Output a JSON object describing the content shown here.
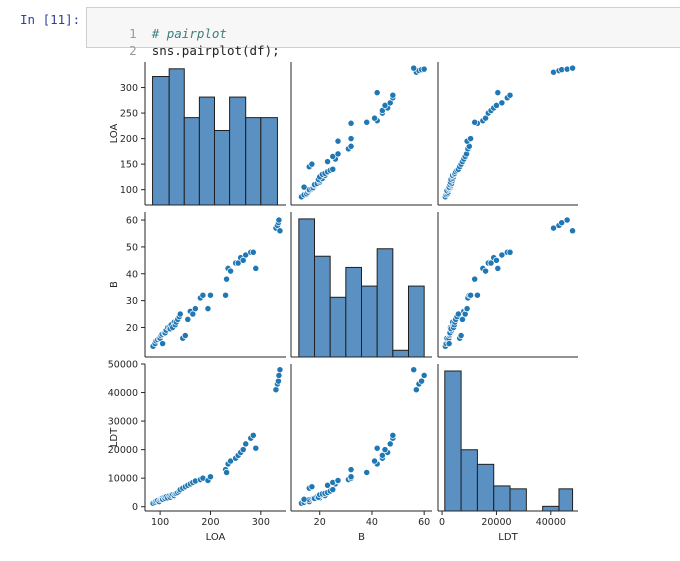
{
  "cell": {
    "prompt": "In [11]:",
    "lines": [
      {
        "num": "1",
        "text": "# pairplot",
        "kind": "comment"
      },
      {
        "num": "2",
        "text": "sns.pairplot(df);",
        "kind": "code"
      }
    ]
  },
  "chart_data": {
    "type": "pairplot",
    "variables": [
      "LOA",
      "B",
      "LDT"
    ],
    "colors": {
      "bar": "#5a91c2",
      "bar_edge": "#1f1f1f",
      "point": "#1f77b4",
      "point_edge": "#ffffff"
    },
    "ranges": {
      "LOA": [
        70,
        350
      ],
      "B": [
        9,
        63
      ],
      "LDT": [
        -1500,
        50000
      ]
    },
    "ticks": {
      "LOA": {
        "row": [
          100,
          150,
          200,
          250,
          300
        ],
        "col": [
          100,
          200,
          300
        ]
      },
      "B": {
        "row": [
          20,
          30,
          40,
          50,
          60
        ],
        "col": [
          20,
          40,
          60
        ]
      },
      "LDT": {
        "row": [
          0,
          10000,
          20000,
          30000,
          40000,
          50000
        ],
        "col": [
          0,
          20000,
          40000
        ]
      }
    },
    "histograms": {
      "LOA": {
        "edges": [
          85,
          118,
          148,
          178,
          208,
          238,
          270,
          300,
          333
        ],
        "counts": [
          5,
          5.3,
          3.4,
          4.2,
          2.9,
          4.2,
          3.4,
          3.4
        ]
      },
      "B": {
        "edges": [
          12,
          18,
          24,
          30,
          36,
          42,
          48,
          54,
          60
        ],
        "counts": [
          37,
          27,
          16,
          24,
          19,
          29,
          1.8,
          19
        ]
      },
      "LDT": {
        "edges": [
          1000,
          7000,
          13000,
          19000,
          25000,
          31000,
          37000,
          43000,
          48000
        ],
        "counts": [
          24,
          10.5,
          8,
          4.3,
          3.8,
          0,
          0.8,
          3.8
        ]
      }
    },
    "points": {
      "LOA": [
        86,
        90,
        92,
        95,
        98,
        100,
        102,
        104,
        105,
        108,
        110,
        112,
        115,
        118,
        120,
        122,
        125,
        128,
        130,
        132,
        135,
        138,
        140,
        145,
        150,
        155,
        160,
        165,
        170,
        180,
        185,
        195,
        200,
        230,
        232,
        235,
        240,
        250,
        255,
        260,
        265,
        270,
        280,
        285,
        290,
        330,
        333,
        335,
        336,
        338
      ],
      "B": [
        13,
        14,
        15,
        15.5,
        16,
        16,
        17,
        17.5,
        14,
        18,
        18,
        19,
        20,
        20,
        19.5,
        21,
        20,
        22,
        21,
        22,
        23,
        24,
        25,
        16,
        17,
        23,
        26,
        25,
        27,
        31,
        32,
        27,
        32,
        32,
        38,
        42,
        41,
        44,
        44,
        46,
        45,
        47,
        48,
        48,
        42,
        57,
        58,
        59,
        60,
        56
      ],
      "LDT": [
        1200,
        1500,
        2000,
        2200,
        1800,
        2500,
        2800,
        3000,
        2600,
        3200,
        2900,
        3500,
        3100,
        3800,
        3300,
        4000,
        4200,
        3900,
        4500,
        4700,
        5000,
        5500,
        6000,
        6500,
        7000,
        7500,
        8000,
        8500,
        9000,
        9500,
        10000,
        9200,
        10500,
        13000,
        12000,
        15000,
        16000,
        17000,
        18000,
        19000,
        20000,
        22000,
        24000,
        25000,
        20500,
        41000,
        43000,
        44000,
        46000,
        48000
      ]
    }
  }
}
